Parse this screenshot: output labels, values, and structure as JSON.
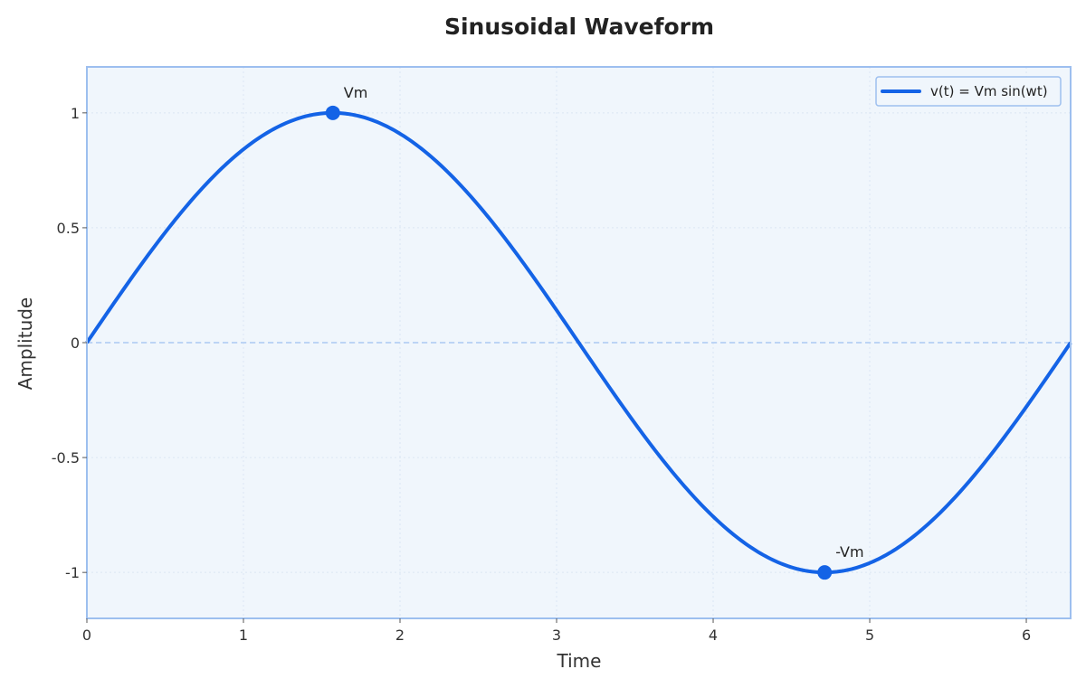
{
  "chart_data": {
    "type": "line",
    "title": "Sinusoidal Waveform",
    "xlabel": "Time",
    "ylabel": "Amplitude",
    "xlim": [
      0,
      6.283
    ],
    "ylim": [
      -1.2,
      1.2
    ],
    "x_ticks": [
      0,
      1,
      2,
      3,
      4,
      5,
      6
    ],
    "x_tick_labels": [
      "0",
      "1",
      "2",
      "3",
      "4",
      "5",
      "6"
    ],
    "y_ticks": [
      1,
      0.5,
      0,
      -0.5,
      -1
    ],
    "y_tick_labels": [
      "1",
      "0.5",
      "0",
      "-0.5",
      "-1"
    ],
    "grid": true,
    "zero_line": true,
    "legend": {
      "position": "top-right"
    },
    "series": [
      {
        "name": "v(t) = Vm sin(wt)",
        "function": "sin",
        "x_range": [
          0,
          6.283
        ],
        "color": "#1463e6"
      }
    ],
    "annotations": [
      {
        "text": "Vm",
        "x": 1.571,
        "y": 1
      },
      {
        "text": "-Vm",
        "x": 4.712,
        "y": -1
      }
    ],
    "colors": {
      "line": "#1463e6",
      "plot_background": "#f0f6fc",
      "frame": "#9dbfef",
      "grid": "#dbe6f3",
      "zero_line": "#bcd4f5"
    }
  }
}
